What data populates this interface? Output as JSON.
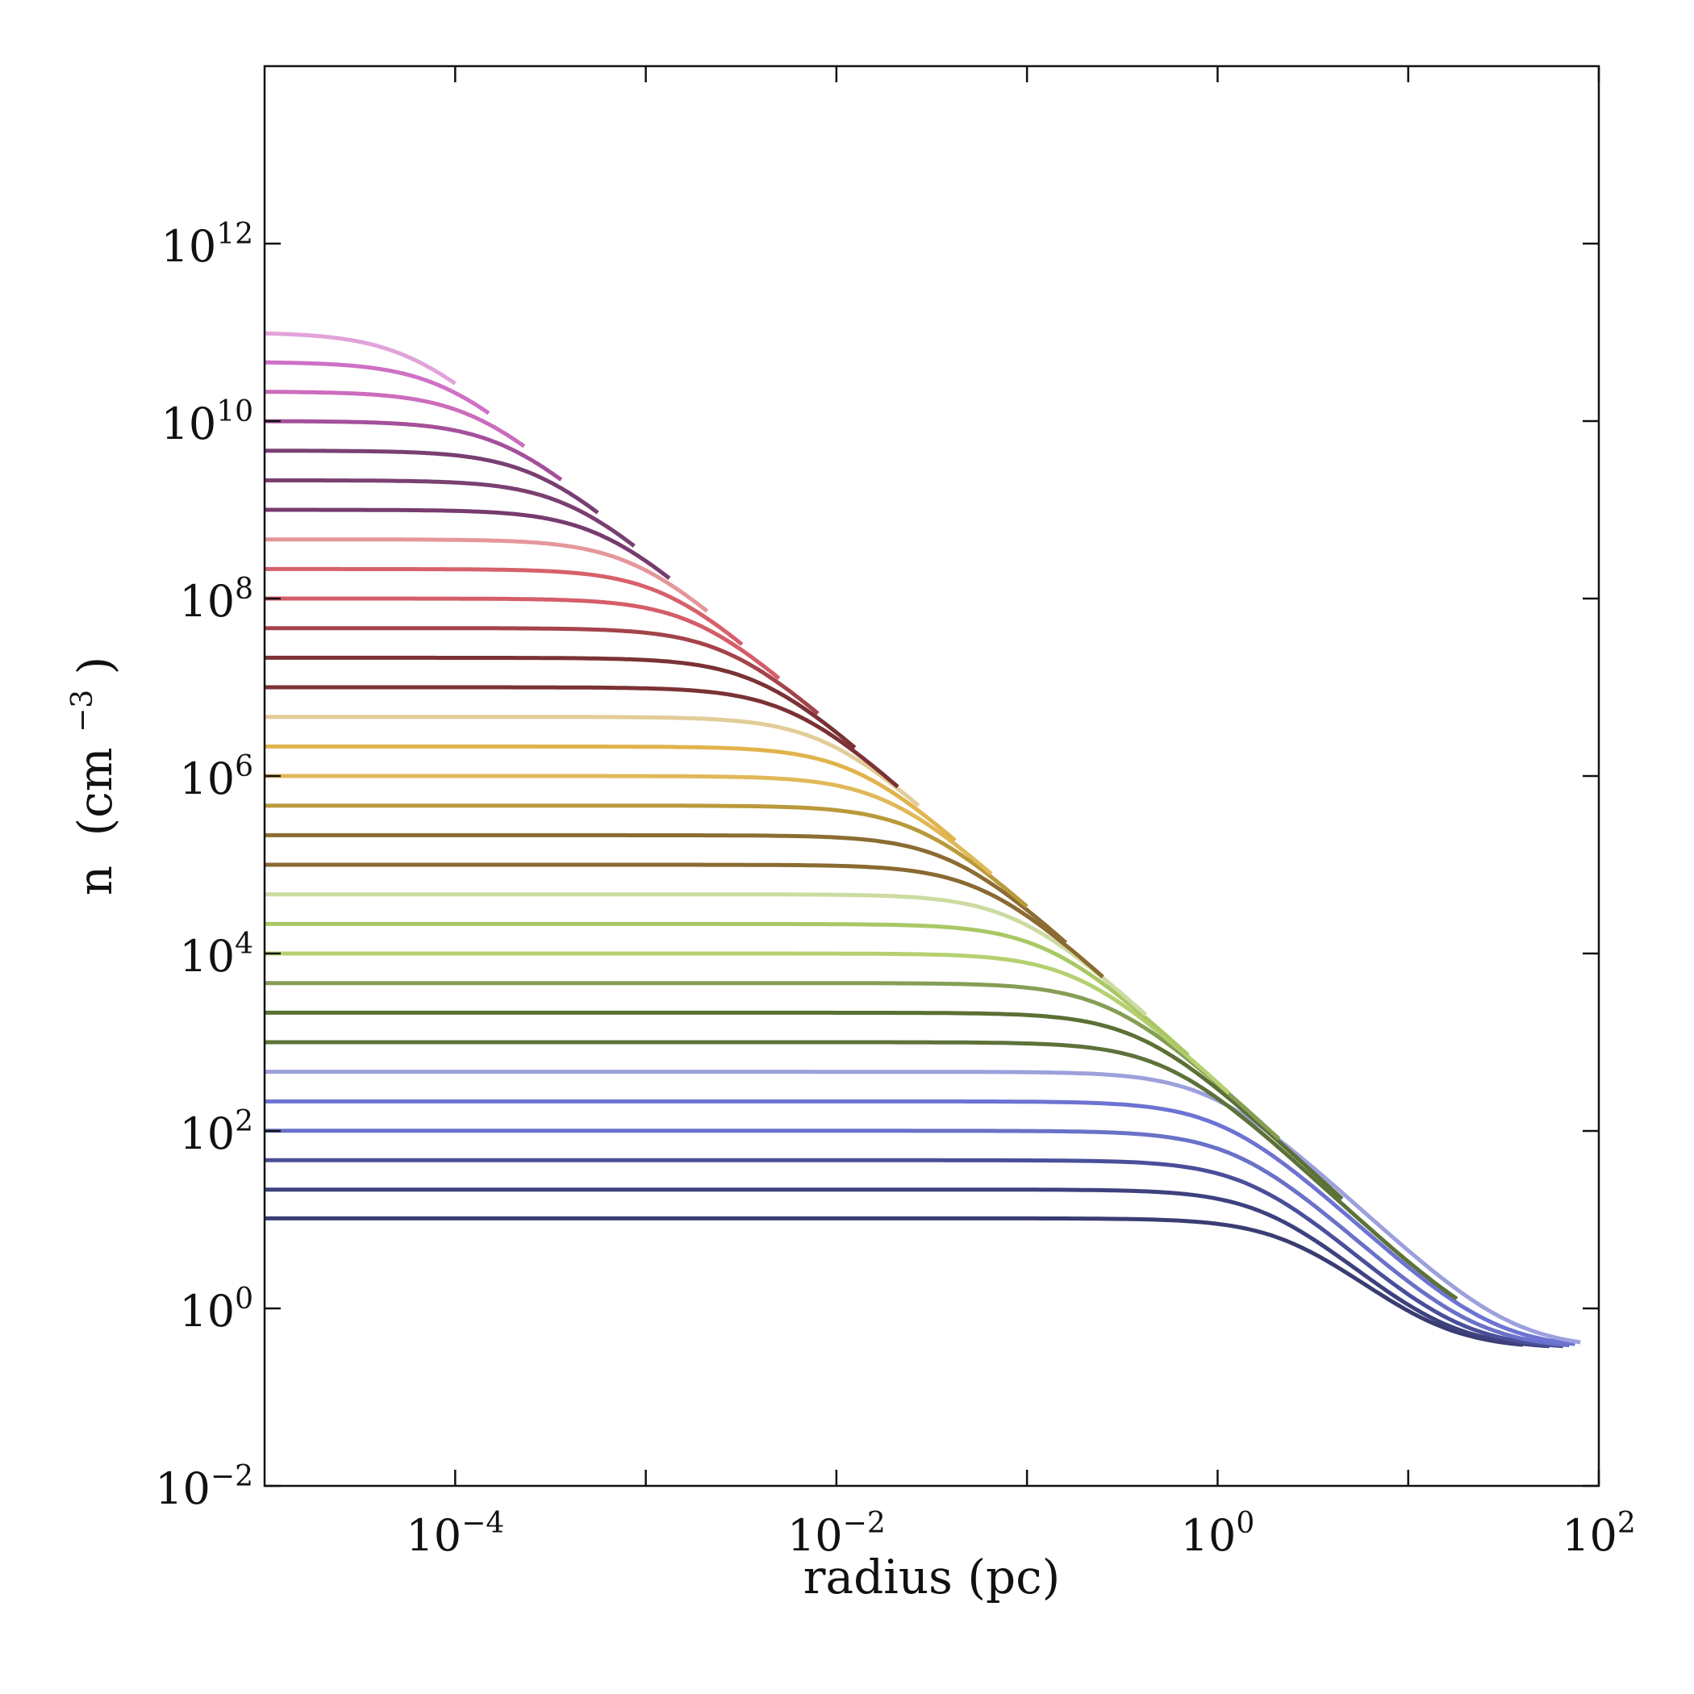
{
  "chart_data": {
    "type": "line",
    "xlabel": "radius (pc)",
    "ylabel": "n (cm^-3)",
    "ylabel_parts": {
      "main": "n",
      "unit_open": "(cm",
      "unit_exp": "−3",
      "unit_close": ")"
    },
    "x_scale": "log",
    "y_scale": "log",
    "xlim": [
      1e-05,
      100
    ],
    "ylim": [
      0.01,
      100000000000000.0
    ],
    "grid": false,
    "x_ticks": [
      {
        "value": 0.0001,
        "base": "10",
        "exp": "−4"
      },
      {
        "value": 0.01,
        "base": "10",
        "exp": "−2"
      },
      {
        "value": 1,
        "base": "10",
        "exp": "0"
      },
      {
        "value": 100,
        "base": "10",
        "exp": "2"
      }
    ],
    "y_ticks": [
      {
        "value": 0.01,
        "base": "10",
        "exp": "−2"
      },
      {
        "value": 1,
        "base": "10",
        "exp": "0"
      },
      {
        "value": 100,
        "base": "10",
        "exp": "2"
      },
      {
        "value": 10000,
        "base": "10",
        "exp": "4"
      },
      {
        "value": 1000000,
        "base": "10",
        "exp": "6"
      },
      {
        "value": 100000000,
        "base": "10",
        "exp": "8"
      },
      {
        "value": 10000000000,
        "base": "10",
        "exp": "10"
      },
      {
        "value": 1000000000000,
        "base": "10",
        "exp": "12"
      }
    ],
    "x_minor_ticks": [
      0.001,
      0.1,
      10
    ],
    "y_minor_ticks": [],
    "profile_shape": "n(r) = n0 / (1 + (r/rc)^2) + 0.35",
    "x_start": 1e-05,
    "series": [
      {
        "n0": 10,
        "rc": 2.5,
        "x_end": 40,
        "color": "#3a3d72"
      },
      {
        "n0": 21.5,
        "rc": 1.9,
        "x_end": 55,
        "color": "#3d417e"
      },
      {
        "n0": 46.4,
        "rc": 1.55,
        "x_end": 65,
        "color": "#4a4f9a"
      },
      {
        "n0": 100,
        "rc": 1.3,
        "x_end": 70,
        "color": "#6a71c8"
      },
      {
        "n0": 215,
        "rc": 1.1,
        "x_end": 75,
        "color": "#6c73d2"
      },
      {
        "n0": 464,
        "rc": 0.95,
        "x_end": 80,
        "color": "#9ca0dc"
      },
      {
        "n0": 1000,
        "rc": 0.55,
        "x_end": 18,
        "color": "#5d7238"
      },
      {
        "n0": 2150,
        "rc": 0.4,
        "x_end": 4.5,
        "color": "#5b7035"
      },
      {
        "n0": 4640,
        "rc": 0.28,
        "x_end": 2.1,
        "color": "#859e55"
      },
      {
        "n0": 10000,
        "rc": 0.19,
        "x_end": 1.15,
        "color": "#b5d070"
      },
      {
        "n0": 21500,
        "rc": 0.13,
        "x_end": 0.7,
        "color": "#a9c864"
      },
      {
        "n0": 46400,
        "rc": 0.09,
        "x_end": 0.42,
        "color": "#ccdba0"
      },
      {
        "n0": 100000,
        "rc": 0.06,
        "x_end": 0.25,
        "color": "#8a6a30"
      },
      {
        "n0": 215000,
        "rc": 0.041,
        "x_end": 0.16,
        "color": "#8c6c32"
      },
      {
        "n0": 464000,
        "rc": 0.028,
        "x_end": 0.1,
        "color": "#b9993a"
      },
      {
        "n0": 1000000,
        "rc": 0.019,
        "x_end": 0.065,
        "color": "#e0b858"
      },
      {
        "n0": 2150000,
        "rc": 0.013,
        "x_end": 0.042,
        "color": "#e1b34c"
      },
      {
        "n0": 4640000,
        "rc": 0.009,
        "x_end": 0.027,
        "color": "#e2cc98"
      },
      {
        "n0": 10000000,
        "rc": 0.006,
        "x_end": 0.021,
        "color": "#7b3235"
      },
      {
        "n0": 21500000,
        "rc": 0.0041,
        "x_end": 0.0125,
        "color": "#7b3235"
      },
      {
        "n0": 46400000,
        "rc": 0.0028,
        "x_end": 0.008,
        "color": "#a5434a"
      },
      {
        "n0": 100000000,
        "rc": 0.0019,
        "x_end": 0.005,
        "color": "#d55d69"
      },
      {
        "n0": 215000000,
        "rc": 0.0013,
        "x_end": 0.0032,
        "color": "#d6616b"
      },
      {
        "n0": 464000000,
        "rc": 0.0009,
        "x_end": 0.0021,
        "color": "#e4979b"
      },
      {
        "n0": 1000000000,
        "rc": 0.0006,
        "x_end": 0.00133,
        "color": "#773b6f"
      },
      {
        "n0": 2150000000,
        "rc": 0.00041,
        "x_end": 0.00087,
        "color": "#7a4070"
      },
      {
        "n0": 4640000000,
        "rc": 0.00028,
        "x_end": 0.00056,
        "color": "#793f72"
      },
      {
        "n0": 10000000000,
        "rc": 0.00019,
        "x_end": 0.00036,
        "color": "#a4509a"
      },
      {
        "n0": 21500000000,
        "rc": 0.00013,
        "x_end": 0.00023,
        "color": "#cc6cbc"
      },
      {
        "n0": 46400000000,
        "rc": 9e-05,
        "x_end": 0.00015,
        "color": "#cf70c5"
      },
      {
        "n0": 100000000000,
        "rc": 6e-05,
        "x_end": 0.0001,
        "color": "#e1a3da"
      }
    ]
  }
}
